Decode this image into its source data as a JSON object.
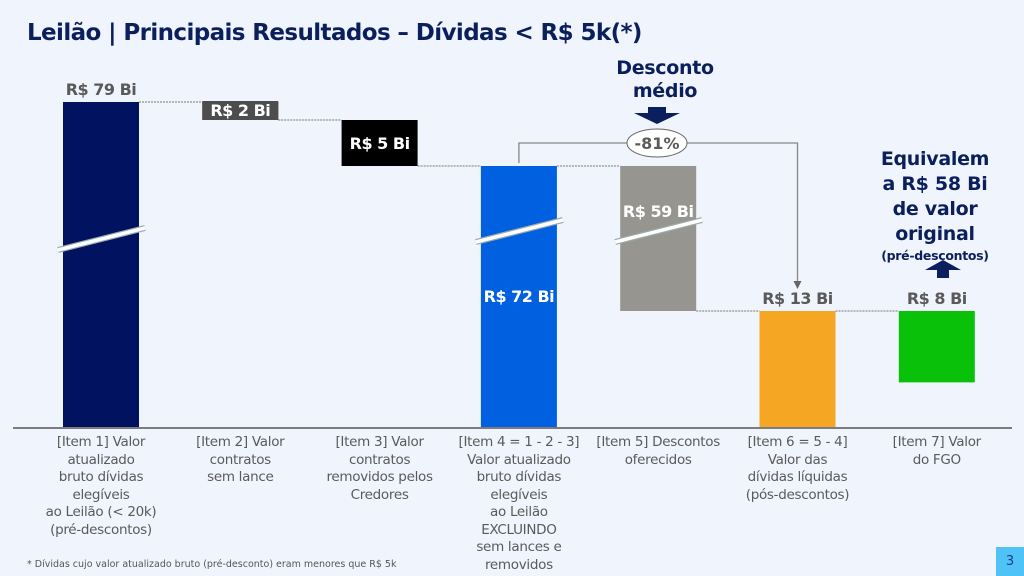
{
  "header": {
    "title": "Leilão | Principais Resultados – Dívidas < R$ 5k(*)"
  },
  "chart_data": {
    "type": "bar",
    "subtype": "waterfall",
    "title": "Leilão | Principais Resultados – Dívidas < R$ 5k(*)",
    "unit": "R$ Bi",
    "categories": [
      "[Item 1] Valor\natualizado\nbruto dívidas\nelegíveis\nao Leilão (< 20k)\n(pré-descontos)",
      "[Item 2] Valor\ncontratos\nsem lance",
      "[Item 3] Valor\ncontratos\nremovidos pelos\nCredores",
      "[Item 4 = 1 - 2 - 3]\nValor atualizado\nbruto dívidas\nelegíveis\nao Leilão\nEXCLUINDO\nsem lances e\nremovidos",
      "[Item 5] Descontos\noferecidos",
      "[Item 6 = 5 - 4]\nValor das\ndívidas líquidas\n(pós-descontos)",
      "[Item 7] Valor\ndo FGO"
    ],
    "values": [
      79,
      -2,
      -5,
      72,
      -59,
      13,
      8
    ],
    "bar_kinds": [
      "total",
      "decrease",
      "decrease",
      "total",
      "decrease",
      "total",
      "standalone"
    ],
    "data_labels": [
      "R$ 79 Bi",
      "R$ 2 Bi",
      "R$ 5 Bi",
      "R$ 72 Bi",
      "R$ 59 Bi",
      "R$ 13 Bi",
      "R$ 8 Bi"
    ],
    "colors": [
      "#001260",
      "#4d4d4d",
      "#000000",
      "#0060e0",
      "#96958f",
      "#f5a623",
      "#0ac10a"
    ],
    "axis_breaks": [
      true,
      false,
      false,
      true,
      true,
      false,
      false
    ],
    "annotations": {
      "discount_title": "Desconto médio",
      "discount_value": "-81%",
      "equivalent_line1": "Equivalem",
      "equivalent_line2": "a R$ 58 Bi",
      "equivalent_line3": "de valor",
      "equivalent_line4": "original",
      "equivalent_note": "(pré-descontos)"
    },
    "xlabel": "",
    "ylabel": "",
    "grid": false,
    "legend": "none"
  },
  "footnote": "* Dívidas cujo valor atualizado bruto (pré-desconto) eram menores que R$ 5k",
  "page_number": "3"
}
